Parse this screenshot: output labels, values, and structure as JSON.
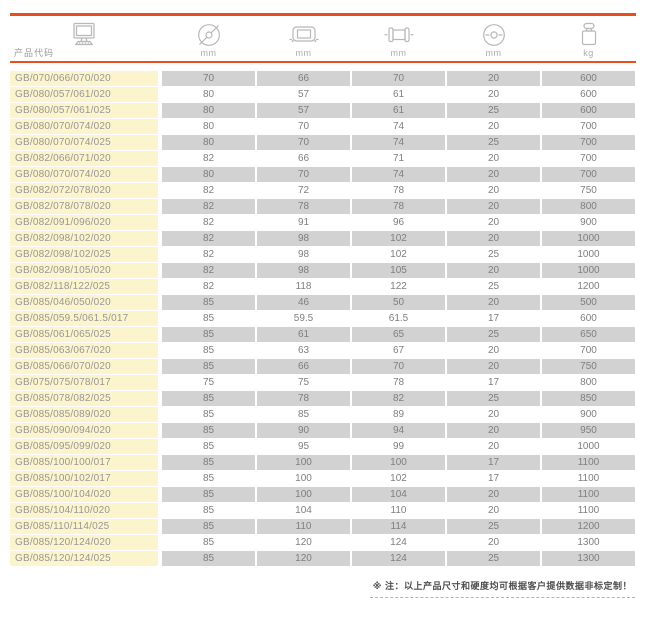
{
  "table": {
    "columns": [
      {
        "name": "product-code",
        "label": "产品代码",
        "unit": ""
      },
      {
        "name": "outer-diameter",
        "icon": "diameter-icon",
        "unit": "mm"
      },
      {
        "name": "inner-width",
        "icon": "inner-width-icon",
        "unit": "mm"
      },
      {
        "name": "overall-width",
        "icon": "roller-width-icon",
        "unit": "mm"
      },
      {
        "name": "bore-diameter",
        "icon": "bore-diameter-icon",
        "unit": "mm"
      },
      {
        "name": "weight",
        "icon": "weight-icon",
        "unit": "kg"
      }
    ],
    "rows": [
      [
        "GB/070/066/070/020",
        "70",
        "66",
        "70",
        "20",
        "600"
      ],
      [
        "GB/080/057/061/020",
        "80",
        "57",
        "61",
        "20",
        "600"
      ],
      [
        "GB/080/057/061/025",
        "80",
        "57",
        "61",
        "25",
        "600"
      ],
      [
        "GB/080/070/074/020",
        "80",
        "70",
        "74",
        "20",
        "700"
      ],
      [
        "GB/080/070/074/025",
        "80",
        "70",
        "74",
        "25",
        "700"
      ],
      [
        "GB/082/066/071/020",
        "82",
        "66",
        "71",
        "20",
        "700"
      ],
      [
        "GB/080/070/074/020",
        "80",
        "70",
        "74",
        "20",
        "700"
      ],
      [
        "GB/082/072/078/020",
        "82",
        "72",
        "78",
        "20",
        "750"
      ],
      [
        "GB/082/078/078/020",
        "82",
        "78",
        "78",
        "20",
        "800"
      ],
      [
        "GB/082/091/096/020",
        "82",
        "91",
        "96",
        "20",
        "900"
      ],
      [
        "GB/082/098/102/020",
        "82",
        "98",
        "102",
        "20",
        "1000"
      ],
      [
        "GB/082/098/102/025",
        "82",
        "98",
        "102",
        "25",
        "1000"
      ],
      [
        "GB/082/098/105/020",
        "82",
        "98",
        "105",
        "20",
        "1000"
      ],
      [
        "GB/082/118/122/025",
        "82",
        "118",
        "122",
        "25",
        "1200"
      ],
      [
        "GB/085/046/050/020",
        "85",
        "46",
        "50",
        "20",
        "500"
      ],
      [
        "GB/085/059.5/061.5/017",
        "85",
        "59.5",
        "61.5",
        "17",
        "600"
      ],
      [
        "GB/085/061/065/025",
        "85",
        "61",
        "65",
        "25",
        "650"
      ],
      [
        "GB/085/063/067/020",
        "85",
        "63",
        "67",
        "20",
        "700"
      ],
      [
        "GB/085/066/070/020",
        "85",
        "66",
        "70",
        "20",
        "750"
      ],
      [
        "GB/075/075/078/017",
        "75",
        "75",
        "78",
        "17",
        "800"
      ],
      [
        "GB/085/078/082/025",
        "85",
        "78",
        "82",
        "25",
        "850"
      ],
      [
        "GB/085/085/089/020",
        "85",
        "85",
        "89",
        "20",
        "900"
      ],
      [
        "GB/085/090/094/020",
        "85",
        "90",
        "94",
        "20",
        "950"
      ],
      [
        "GB/085/095/099/020",
        "85",
        "95",
        "99",
        "20",
        "1000"
      ],
      [
        "GB/085/100/100/017",
        "85",
        "100",
        "100",
        "17",
        "1100"
      ],
      [
        "GB/085/100/102/017",
        "85",
        "100",
        "102",
        "17",
        "1100"
      ],
      [
        "GB/085/100/104/020",
        "85",
        "100",
        "104",
        "20",
        "1100"
      ],
      [
        "GB/085/104/110/020",
        "85",
        "104",
        "110",
        "20",
        "1100"
      ],
      [
        "GB/085/110/114/025",
        "85",
        "110",
        "114",
        "25",
        "1200"
      ],
      [
        "GB/085/120/124/020",
        "85",
        "120",
        "124",
        "20",
        "1300"
      ],
      [
        "GB/085/120/124/025",
        "85",
        "120",
        "124",
        "25",
        "1300"
      ]
    ]
  },
  "footer": {
    "note": "※ 注：以上产品尺寸和硬度均可根据客户提供数据非标定制！"
  },
  "colors": {
    "accent": "#EA4E1D",
    "code_column_bg": "#FBF4CC",
    "shaded_row_bg": "#D2D2D2",
    "text": "#7F7F7F",
    "icon_stroke": "#B8B8B8"
  }
}
